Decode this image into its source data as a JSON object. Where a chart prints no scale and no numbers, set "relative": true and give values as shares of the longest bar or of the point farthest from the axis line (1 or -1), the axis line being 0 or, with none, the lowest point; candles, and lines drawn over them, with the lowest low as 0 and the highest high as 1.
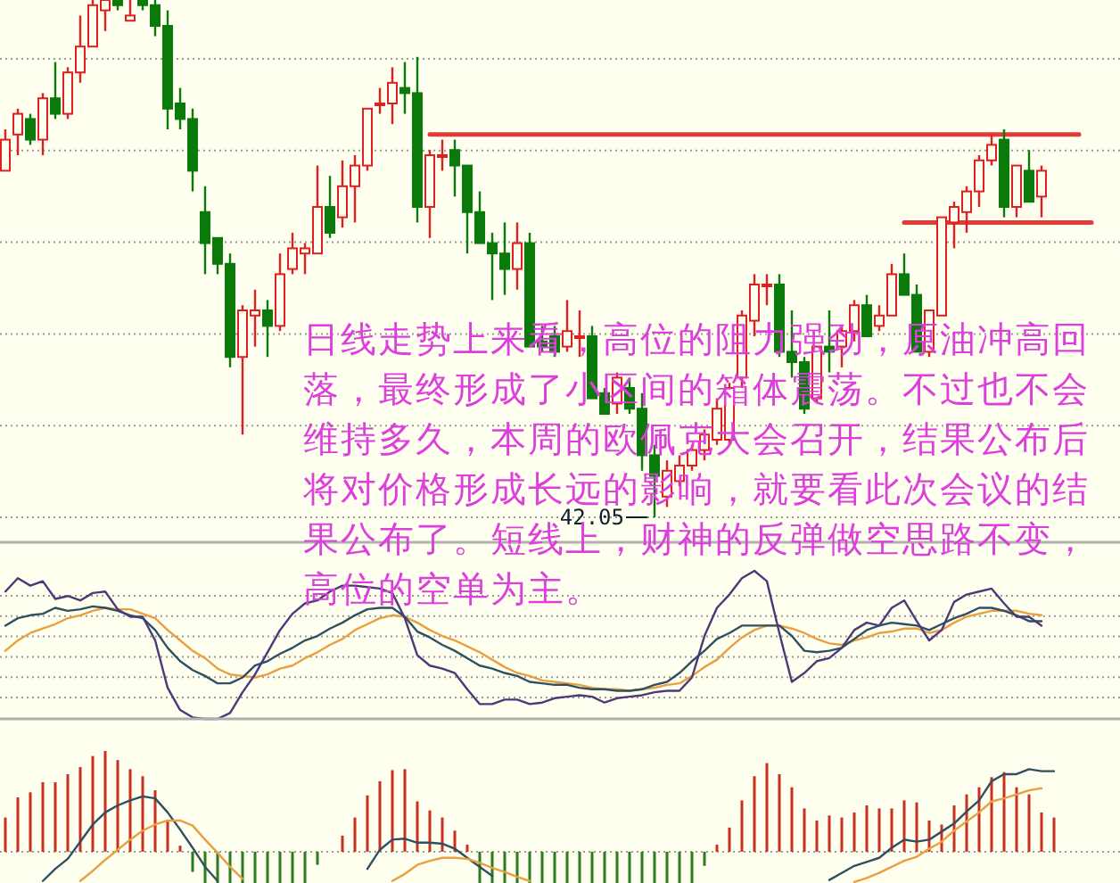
{
  "chart_data": [
    {
      "type": "candlestick",
      "relative": true,
      "grid": "y",
      "categories": [
        null,
        null,
        null,
        null,
        null,
        null,
        null,
        null,
        null,
        null,
        null,
        null,
        null,
        null,
        null,
        null,
        null,
        null,
        null,
        null,
        null,
        null,
        null,
        null,
        null,
        null,
        null,
        null,
        null,
        null,
        null,
        null,
        null,
        null,
        null,
        null,
        null,
        null,
        null,
        null,
        null,
        null,
        null,
        null,
        null,
        null,
        null,
        null,
        null,
        null,
        null,
        null,
        null,
        null,
        null,
        null,
        null,
        null,
        null,
        null,
        null,
        null,
        null,
        null,
        null,
        null,
        null,
        null,
        null,
        null,
        null,
        null,
        null,
        null,
        null,
        null,
        null,
        null,
        null,
        null,
        null,
        null,
        null,
        null,
        null,
        null,
        null,
        null
      ],
      "ohlc": [
        [
          0.67,
          0.75,
          0.67,
          0.73
        ],
        [
          0.74,
          0.79,
          0.7,
          0.78
        ],
        [
          0.77,
          0.78,
          0.72,
          0.73
        ],
        [
          0.73,
          0.82,
          0.7,
          0.81
        ],
        [
          0.81,
          0.88,
          0.77,
          0.78
        ],
        [
          0.78,
          0.87,
          0.77,
          0.86
        ],
        [
          0.86,
          0.97,
          0.84,
          0.91
        ],
        [
          0.91,
          1.0,
          0.91,
          0.99
        ],
        [
          0.98,
          1.0,
          0.94,
          1.0
        ],
        [
          1.0,
          1.0,
          0.98,
          0.99
        ],
        [
          0.96,
          1.0,
          0.96,
          0.97
        ],
        [
          1.0,
          1.0,
          0.98,
          0.99
        ],
        [
          0.99,
          1.0,
          0.93,
          0.95
        ],
        [
          0.95,
          0.98,
          0.75,
          0.79
        ],
        [
          0.8,
          0.83,
          0.75,
          0.77
        ],
        [
          0.77,
          0.79,
          0.63,
          0.67
        ],
        [
          0.59,
          0.64,
          0.47,
          0.53
        ],
        [
          0.54,
          0.54,
          0.47,
          0.49
        ],
        [
          0.49,
          0.51,
          0.29,
          0.31
        ],
        [
          0.31,
          0.41,
          0.16,
          0.4
        ],
        [
          0.39,
          0.44,
          0.33,
          0.4
        ],
        [
          0.4,
          0.42,
          0.31,
          0.37
        ],
        [
          0.37,
          0.51,
          0.36,
          0.47
        ],
        [
          0.48,
          0.55,
          0.47,
          0.52
        ],
        [
          0.51,
          0.53,
          0.47,
          0.52
        ],
        [
          0.51,
          0.68,
          0.51,
          0.6
        ],
        [
          0.6,
          0.66,
          0.54,
          0.55
        ],
        [
          0.58,
          0.69,
          0.56,
          0.64
        ],
        [
          0.64,
          0.7,
          0.57,
          0.68
        ],
        [
          0.68,
          0.79,
          0.67,
          0.79
        ],
        [
          0.8,
          0.83,
          0.78,
          0.8
        ],
        [
          0.8,
          0.87,
          0.76,
          0.84
        ],
        [
          0.83,
          0.88,
          0.78,
          0.82
        ],
        [
          0.82,
          0.89,
          0.57,
          0.6
        ],
        [
          0.6,
          0.71,
          0.54,
          0.7
        ],
        [
          0.7,
          0.73,
          0.67,
          0.7
        ],
        [
          0.71,
          0.73,
          0.62,
          0.68
        ],
        [
          0.68,
          0.68,
          0.51,
          0.59
        ],
        [
          0.59,
          0.63,
          0.53,
          0.53
        ],
        [
          0.53,
          0.55,
          0.42,
          0.51
        ],
        [
          0.51,
          0.57,
          0.43,
          0.48
        ],
        [
          0.48,
          0.57,
          0.44,
          0.53
        ],
        [
          0.53,
          0.55,
          0.33,
          0.33
        ],
        [
          0.34,
          0.37,
          0.32,
          0.33
        ],
        [
          0.35,
          0.37,
          0.31,
          0.32
        ],
        [
          0.33,
          0.42,
          0.32,
          0.36
        ],
        [
          0.35,
          0.4,
          0.31,
          0.35
        ],
        [
          0.35,
          0.37,
          0.23,
          0.23
        ],
        [
          0.24,
          0.25,
          0.2,
          0.2
        ],
        [
          0.22,
          0.28,
          0.2,
          0.27
        ],
        [
          0.25,
          0.27,
          0.2,
          0.21
        ],
        [
          0.21,
          0.24,
          0.09,
          0.12
        ],
        [
          0.12,
          0.14,
          0.0,
          0.08
        ],
        [
          0.04,
          0.11,
          0.02,
          0.09
        ],
        [
          0.07,
          0.12,
          0.06,
          0.1
        ],
        [
          0.1,
          0.14,
          0.09,
          0.13
        ],
        [
          0.13,
          0.17,
          0.11,
          0.16
        ],
        [
          0.15,
          0.23,
          0.14,
          0.21
        ],
        [
          0.15,
          0.26,
          0.14,
          0.25
        ],
        [
          0.27,
          0.4,
          0.25,
          0.39
        ],
        [
          0.38,
          0.47,
          0.35,
          0.45
        ],
        [
          0.45,
          0.47,
          0.41,
          0.45
        ],
        [
          0.45,
          0.47,
          0.31,
          0.32
        ],
        [
          0.32,
          0.4,
          0.27,
          0.3
        ],
        [
          0.3,
          0.31,
          0.2,
          0.21
        ],
        [
          0.23,
          0.33,
          0.22,
          0.33
        ],
        [
          0.33,
          0.4,
          0.28,
          0.32
        ],
        [
          0.33,
          0.37,
          0.29,
          0.36
        ],
        [
          0.36,
          0.42,
          0.34,
          0.41
        ],
        [
          0.41,
          0.43,
          0.35,
          0.35
        ],
        [
          0.37,
          0.41,
          0.36,
          0.39
        ],
        [
          0.39,
          0.49,
          0.39,
          0.47
        ],
        [
          0.47,
          0.51,
          0.43,
          0.43
        ],
        [
          0.43,
          0.45,
          0.32,
          0.32
        ],
        [
          0.32,
          0.4,
          0.31,
          0.4
        ],
        [
          0.39,
          0.58,
          0.39,
          0.58
        ],
        [
          0.57,
          0.61,
          0.52,
          0.6
        ],
        [
          0.59,
          0.64,
          0.55,
          0.63
        ],
        [
          0.63,
          0.7,
          0.6,
          0.69
        ],
        [
          0.69,
          0.74,
          0.68,
          0.72
        ],
        [
          0.73,
          0.75,
          0.58,
          0.6
        ],
        [
          0.6,
          0.68,
          0.58,
          0.68
        ],
        [
          0.67,
          0.71,
          0.61,
          0.61
        ],
        [
          0.62,
          0.68,
          0.58,
          0.67
        ],
        null,
        null,
        null,
        null
      ],
      "series": [
        {
          "type": "line",
          "color": "#e03a3a",
          "values": [
            null,
            null,
            null,
            null,
            null,
            null,
            null,
            null,
            null,
            null,
            null,
            null,
            null,
            null,
            null,
            null,
            null,
            null,
            null,
            null,
            null,
            null,
            null,
            null,
            null,
            null,
            null,
            null,
            null,
            null,
            null,
            null,
            null,
            null,
            0.74,
            0.74,
            0.74,
            0.74,
            0.74,
            0.74,
            0.74,
            0.74,
            0.74,
            0.74,
            0.74,
            0.74,
            0.74,
            0.74,
            0.74,
            0.74,
            0.74,
            0.74,
            0.74,
            0.74,
            0.74,
            0.74,
            0.74,
            0.74,
            0.74,
            0.74,
            0.74,
            0.74,
            0.74,
            0.74,
            0.74,
            0.74,
            0.74,
            0.74,
            0.74,
            0.74,
            0.74,
            0.74,
            0.74,
            0.74,
            0.74,
            0.74,
            0.74,
            0.74,
            0.74,
            0.74,
            0.74,
            0.74,
            0.74,
            0.74,
            0.74,
            0.74,
            0.74,
            null
          ]
        },
        {
          "type": "line",
          "color": "#e03a3a",
          "values": [
            null,
            null,
            null,
            null,
            null,
            null,
            null,
            null,
            null,
            null,
            null,
            null,
            null,
            null,
            null,
            null,
            null,
            null,
            null,
            null,
            null,
            null,
            null,
            null,
            null,
            null,
            null,
            null,
            null,
            null,
            null,
            null,
            null,
            null,
            null,
            null,
            null,
            null,
            null,
            null,
            null,
            null,
            null,
            null,
            null,
            null,
            null,
            null,
            null,
            null,
            null,
            null,
            null,
            null,
            null,
            null,
            null,
            null,
            null,
            null,
            null,
            null,
            null,
            null,
            null,
            null,
            null,
            null,
            null,
            null,
            null,
            null,
            0.57,
            0.57,
            0.57,
            0.57,
            0.57,
            0.57,
            0.57,
            0.57,
            0.57,
            0.57,
            0.57,
            0.57,
            0.57,
            0.57,
            0.57,
            0.57
          ]
        }
      ],
      "annotations": [
        "日线走势上来看，高位的阻力强劲，原油冲高回落，最终形成了小区间的箱体震荡。不过也不会维持多久，本周的欧佩克大会召开，结果公布后将对价格形成长远的影响，就要看此次会议的结果公布了。短线上，财神的反弹做空思路不变，高位的空单为主。",
        "42.05"
      ]
    },
    {
      "type": "line",
      "relative": true,
      "grid": "y",
      "categories": [
        null,
        null,
        null,
        null,
        null,
        null,
        null,
        null,
        null,
        null,
        null,
        null,
        null,
        null,
        null,
        null,
        null,
        null,
        null,
        null,
        null,
        null,
        null,
        null,
        null,
        null,
        null,
        null,
        null,
        null,
        null,
        null,
        null,
        null,
        null,
        null,
        null,
        null,
        null,
        null,
        null,
        null,
        null,
        null,
        null,
        null,
        null,
        null,
        null,
        null,
        null,
        null,
        null,
        null,
        null,
        null,
        null,
        null,
        null,
        null,
        null,
        null,
        null,
        null,
        null,
        null,
        null,
        null,
        null,
        null,
        null,
        null,
        null,
        null,
        null,
        null,
        null,
        null,
        null,
        null,
        null,
        null,
        null,
        null,
        null,
        null,
        null,
        null
      ],
      "series": [
        {
          "color": "#e8a040",
          "values": [
            0.46,
            0.53,
            0.58,
            0.61,
            0.64,
            0.68,
            0.7,
            0.73,
            0.75,
            0.74,
            0.74,
            0.71,
            0.68,
            0.6,
            0.53,
            0.46,
            0.41,
            0.34,
            0.3,
            0.29,
            0.28,
            0.3,
            0.34,
            0.36,
            0.41,
            0.45,
            0.5,
            0.54,
            0.6,
            0.64,
            0.68,
            0.7,
            0.69,
            0.65,
            0.6,
            0.56,
            0.53,
            0.49,
            0.45,
            0.4,
            0.35,
            0.31,
            0.29,
            0.26,
            0.25,
            0.24,
            0.23,
            0.21,
            0.2,
            0.2,
            0.19,
            0.2,
            0.21,
            0.23,
            0.24,
            0.29,
            0.35,
            0.4,
            0.48,
            0.55,
            0.6,
            0.63,
            0.63,
            0.61,
            0.58,
            0.54,
            0.51,
            0.5,
            0.53,
            0.55,
            0.58,
            0.59,
            0.61,
            0.61,
            0.58,
            0.6,
            0.65,
            0.69,
            0.71,
            0.73,
            0.73,
            0.73,
            0.71,
            0.7,
            null,
            null,
            null,
            null
          ]
        },
        {
          "color": "#2f5060",
          "values": [
            0.63,
            0.68,
            0.7,
            0.71,
            0.75,
            0.73,
            0.74,
            0.76,
            0.75,
            0.73,
            0.7,
            0.68,
            0.6,
            0.48,
            0.39,
            0.33,
            0.29,
            0.24,
            0.24,
            0.28,
            0.36,
            0.39,
            0.44,
            0.48,
            0.53,
            0.56,
            0.61,
            0.65,
            0.7,
            0.74,
            0.75,
            0.75,
            0.69,
            0.59,
            0.55,
            0.5,
            0.46,
            0.41,
            0.36,
            0.34,
            0.31,
            0.29,
            0.25,
            0.24,
            0.23,
            0.23,
            0.21,
            0.2,
            0.2,
            0.19,
            0.19,
            0.2,
            0.23,
            0.25,
            0.31,
            0.39,
            0.46,
            0.54,
            0.58,
            0.63,
            0.63,
            0.63,
            0.63,
            0.56,
            0.46,
            0.45,
            0.46,
            0.48,
            0.54,
            0.6,
            0.63,
            0.65,
            0.64,
            0.63,
            0.6,
            0.64,
            0.68,
            0.71,
            0.75,
            0.75,
            0.73,
            0.7,
            0.66,
            0.66,
            null,
            null,
            null,
            null
          ]
        },
        {
          "color": "#4a3a7a",
          "values": [
            0.86,
            0.95,
            0.9,
            0.93,
            0.81,
            0.83,
            0.8,
            0.85,
            0.86,
            0.74,
            0.69,
            0.69,
            0.53,
            0.21,
            0.06,
            0.01,
            0.0,
            0.0,
            0.04,
            0.18,
            0.3,
            0.45,
            0.6,
            0.71,
            0.78,
            0.8,
            0.86,
            0.9,
            0.9,
            0.89,
            0.88,
            0.85,
            0.68,
            0.43,
            0.36,
            0.34,
            0.31,
            0.2,
            0.1,
            0.1,
            0.13,
            0.13,
            0.1,
            0.11,
            0.14,
            0.15,
            0.16,
            0.15,
            0.11,
            0.14,
            0.15,
            0.16,
            0.18,
            0.19,
            0.19,
            0.28,
            0.56,
            0.75,
            0.84,
            0.95,
            1.0,
            0.93,
            0.58,
            0.25,
            0.31,
            0.39,
            0.41,
            0.48,
            0.6,
            0.65,
            0.63,
            0.75,
            0.8,
            0.66,
            0.53,
            0.6,
            0.79,
            0.84,
            0.86,
            0.88,
            0.78,
            0.69,
            0.69,
            0.63,
            null,
            null,
            null,
            null
          ]
        }
      ]
    },
    {
      "type": "bar",
      "relative": true,
      "ref_lines": [
        {
          "axis": "y",
          "value": 0,
          "color": "#9a9a9a",
          "line_style": "dotted"
        }
      ],
      "categories": [
        null,
        null,
        null,
        null,
        null,
        null,
        null,
        null,
        null,
        null,
        null,
        null,
        null,
        null,
        null,
        null,
        null,
        null,
        null,
        null,
        null,
        null,
        null,
        null,
        null,
        null,
        null,
        null,
        null,
        null,
        null,
        null,
        null,
        null,
        null,
        null,
        null,
        null,
        null,
        null,
        null,
        null,
        null,
        null,
        null,
        null,
        null,
        null,
        null,
        null,
        null,
        null,
        null,
        null,
        null,
        null,
        null,
        null,
        null,
        null,
        null,
        null,
        null,
        null,
        null,
        null,
        null,
        null,
        null,
        null,
        null,
        null,
        null,
        null,
        null,
        null,
        null,
        null,
        null,
        null,
        null,
        null,
        null,
        null,
        null,
        null,
        null,
        null
      ],
      "series": [
        {
          "type": "bar",
          "color": "#c83020",
          "values": [
            0.34,
            0.54,
            0.59,
            0.69,
            0.69,
            0.77,
            0.84,
            0.95,
            1.0,
            0.91,
            0.82,
            0.75,
            0.61,
            0.3,
            0.06,
            null,
            null,
            null,
            null,
            null,
            null,
            null,
            null,
            null,
            null,
            null,
            null,
            0.16,
            0.34,
            0.56,
            0.7,
            0.81,
            0.82,
            0.5,
            0.41,
            0.34,
            0.21,
            0.07,
            null,
            null,
            null,
            null,
            null,
            null,
            null,
            null,
            null,
            null,
            null,
            null,
            null,
            null,
            null,
            null,
            null,
            null,
            null,
            0.07,
            0.24,
            0.51,
            0.75,
            0.88,
            0.77,
            0.64,
            0.43,
            0.31,
            0.36,
            0.34,
            0.39,
            0.46,
            0.43,
            0.43,
            0.51,
            0.49,
            0.31,
            0.27,
            0.46,
            0.57,
            0.64,
            0.74,
            0.79,
            0.64,
            0.57,
            0.39,
            0.34,
            null,
            null,
            null
          ]
        },
        {
          "type": "bar",
          "color": "#2a7a20",
          "values": [
            null,
            null,
            null,
            null,
            null,
            null,
            null,
            null,
            null,
            null,
            null,
            null,
            null,
            null,
            null,
            -0.2,
            -0.31,
            -0.31,
            -0.31,
            -0.31,
            -0.31,
            -0.31,
            -0.31,
            -0.31,
            -0.31,
            -0.13,
            null,
            null,
            null,
            null,
            null,
            null,
            null,
            null,
            null,
            null,
            null,
            null,
            -0.31,
            -0.31,
            -0.31,
            -0.31,
            -0.31,
            -0.31,
            -0.31,
            -0.31,
            -0.31,
            -0.31,
            -0.31,
            -0.31,
            -0.31,
            -0.31,
            -0.31,
            -0.31,
            -0.31,
            -0.31,
            -0.14,
            null,
            null,
            null,
            null,
            null,
            null,
            null,
            null,
            null,
            null,
            null,
            null,
            null,
            null,
            null,
            null,
            null,
            null,
            null,
            null,
            null,
            null,
            null,
            null,
            null,
            null,
            null,
            null,
            null,
            null,
            null
          ]
        },
        {
          "type": "line",
          "color": "#2f5060",
          "values": [
            null,
            null,
            null,
            -0.29,
            -0.17,
            -0.07,
            0.1,
            0.27,
            0.39,
            0.46,
            0.51,
            0.55,
            0.53,
            0.39,
            0.22,
            0.04,
            -0.15,
            -0.29,
            null,
            null,
            null,
            null,
            null,
            null,
            null,
            null,
            null,
            null,
            null,
            -0.17,
            0.02,
            0.12,
            0.13,
            0.09,
            0.09,
            0.08,
            0.03,
            -0.06,
            -0.15,
            -0.24,
            null,
            null,
            null,
            null,
            null,
            null,
            null,
            null,
            null,
            null,
            null,
            null,
            null,
            null,
            null,
            null,
            null,
            null,
            null,
            null,
            null,
            null,
            null,
            null,
            null,
            null,
            -0.28,
            -0.21,
            -0.14,
            -0.1,
            -0.06,
            0.04,
            0.12,
            0.1,
            0.12,
            0.2,
            0.28,
            0.4,
            0.51,
            0.7,
            0.77,
            0.77,
            0.82,
            0.8,
            0.8,
            null,
            null,
            null
          ]
        },
        {
          "type": "line",
          "color": "#e8a040",
          "values": [
            null,
            null,
            null,
            null,
            null,
            null,
            -0.29,
            -0.19,
            -0.08,
            0.02,
            0.12,
            0.21,
            0.27,
            0.31,
            0.31,
            0.26,
            0.12,
            -0.01,
            -0.15,
            -0.27,
            null,
            null,
            null,
            null,
            null,
            null,
            null,
            null,
            null,
            null,
            null,
            -0.29,
            -0.22,
            -0.13,
            -0.09,
            -0.06,
            -0.06,
            -0.07,
            -0.11,
            -0.16,
            -0.2,
            -0.25,
            -0.29,
            null,
            null,
            null,
            null,
            null,
            null,
            null,
            null,
            null,
            null,
            null,
            null,
            null,
            null,
            null,
            null,
            null,
            null,
            null,
            null,
            null,
            null,
            null,
            null,
            null,
            -0.3,
            -0.26,
            -0.21,
            -0.15,
            -0.09,
            -0.05,
            0.03,
            0.1,
            0.21,
            0.3,
            0.39,
            0.5,
            0.53,
            0.57,
            0.61,
            0.63,
            null,
            null,
            null,
            null
          ]
        }
      ]
    }
  ]
}
